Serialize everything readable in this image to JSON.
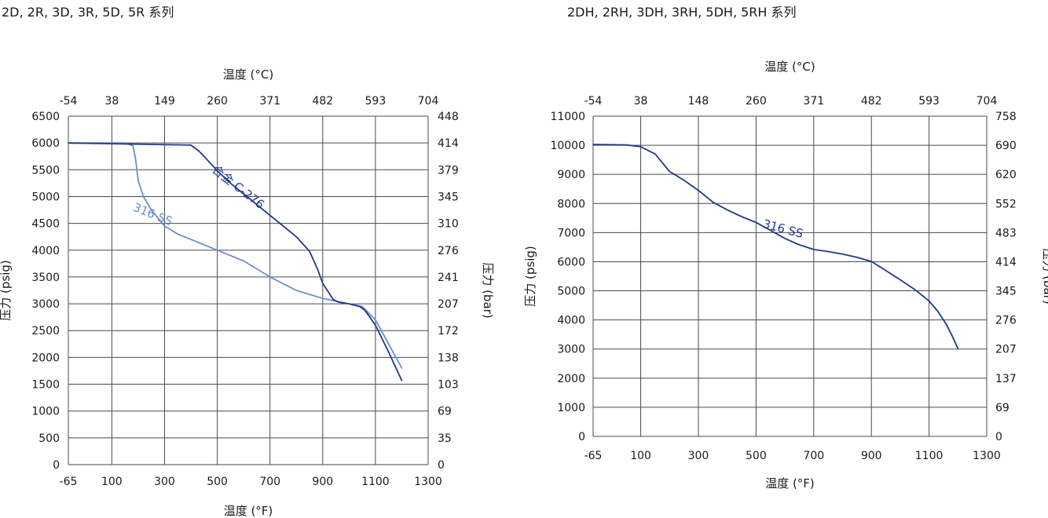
{
  "titles": {
    "left": "2D, 2R, 3D, 3R, 5D, 5R 系列",
    "right": "2DH, 2RH, 3DH, 3RH, 5DH, 5RH 系列"
  },
  "chart_data": [
    {
      "type": "line",
      "id": "left",
      "title": "2D, 2R, 3D, 3R, 5D, 5R 系列",
      "xlabel_bottom": "温度 (°F)",
      "xlabel_top": "温度 (°C)",
      "ylabel_left": "压力 (psig)",
      "ylabel_right": "压力 (bar)",
      "xlim": [
        -65,
        1300
      ],
      "ylim": [
        0,
        6500
      ],
      "x_ticks": [
        -65,
        100,
        300,
        500,
        700,
        900,
        1100,
        1300
      ],
      "x_tick_labels": [
        "-65",
        "100",
        "300",
        "500",
        "700",
        "900",
        "1100",
        "1300"
      ],
      "x_top_ticks": [
        -65,
        100,
        300,
        500,
        700,
        900,
        1100,
        1300
      ],
      "x_top_tick_labels": [
        "-54",
        "38",
        "149",
        "260",
        "371",
        "482",
        "593",
        "704"
      ],
      "y_ticks": [
        0,
        500,
        1000,
        1500,
        2000,
        2500,
        3000,
        3500,
        4000,
        4500,
        5000,
        5500,
        6000,
        6500
      ],
      "y_tick_labels": [
        "0",
        "500",
        "1000",
        "1500",
        "2000",
        "2500",
        "3000",
        "3500",
        "4000",
        "4500",
        "5000",
        "5500",
        "6000",
        "6500"
      ],
      "y_right_tick_labels": [
        "0",
        "35",
        "69",
        "103",
        "138",
        "172",
        "207",
        "241",
        "276",
        "310",
        "345",
        "379",
        "414",
        "448"
      ],
      "grid": true,
      "series": [
        {
          "name": "316 SS",
          "label": "316 SS",
          "color": "#6a8fcf",
          "label_at": [
            250,
            4600
          ],
          "label_angle": 22,
          "x": [
            -65,
            150,
            180,
            190,
            200,
            220,
            250,
            300,
            350,
            400,
            500,
            600,
            700,
            800,
            900,
            1000,
            1050,
            1100,
            1150,
            1200
          ],
          "y": [
            6000,
            6000,
            5950,
            5700,
            5300,
            5000,
            4750,
            4450,
            4300,
            4200,
            4000,
            3800,
            3500,
            3250,
            3100,
            3000,
            2950,
            2700,
            2250,
            1800
          ]
        },
        {
          "name": "合金 C-276",
          "label": "合金 C-276",
          "color": "#1f3a8a",
          "label_at": [
            570,
            5120
          ],
          "label_angle": 38,
          "x": [
            -65,
            400,
            430,
            450,
            500,
            550,
            600,
            650,
            700,
            750,
            800,
            850,
            880,
            900,
            940,
            960,
            1000,
            1040,
            1060,
            1100,
            1150,
            1200
          ],
          "y": [
            6000,
            5960,
            5850,
            5750,
            5480,
            5250,
            5050,
            4850,
            4650,
            4450,
            4250,
            3980,
            3650,
            3380,
            3080,
            3030,
            3000,
            2950,
            2880,
            2600,
            2100,
            1570
          ]
        }
      ]
    },
    {
      "type": "line",
      "id": "right",
      "title": "2DH, 2RH, 3DH, 3RH, 5DH, 5RH 系列",
      "xlabel_bottom": "温度 (°F)",
      "xlabel_top": "温度 (°C)",
      "ylabel_left": "压力 (psig)",
      "ylabel_right": "压力 (bar)",
      "xlim": [
        -65,
        1300
      ],
      "ylim": [
        0,
        11000
      ],
      "x_ticks": [
        -65,
        100,
        300,
        500,
        700,
        900,
        1100,
        1300
      ],
      "x_tick_labels": [
        "-65",
        "100",
        "300",
        "500",
        "700",
        "900",
        "1100",
        "1300"
      ],
      "x_top_ticks": [
        -65,
        100,
        300,
        500,
        700,
        900,
        1100,
        1300
      ],
      "x_top_tick_labels": [
        "-54",
        "38",
        "148",
        "260",
        "371",
        "482",
        "593",
        "704"
      ],
      "y_ticks": [
        0,
        1000,
        2000,
        3000,
        4000,
        5000,
        6000,
        7000,
        8000,
        9000,
        10000,
        11000
      ],
      "y_tick_labels": [
        "0",
        "1000",
        "2000",
        "3000",
        "4000",
        "5000",
        "6000",
        "7000",
        "8000",
        "9000",
        "10000",
        "11000"
      ],
      "y_right_tick_labels": [
        "0",
        "69",
        "137",
        "207",
        "276",
        "345",
        "414",
        "483",
        "552",
        "620",
        "690",
        "758"
      ],
      "grid": true,
      "series": [
        {
          "name": "316 SS",
          "label": "316 SS",
          "color": "#1f3a8a",
          "label_at": [
            590,
            7000
          ],
          "label_angle": 15,
          "x": [
            -65,
            50,
            100,
            150,
            200,
            250,
            300,
            350,
            400,
            450,
            500,
            550,
            600,
            650,
            700,
            750,
            800,
            850,
            900,
            950,
            1000,
            1050,
            1100,
            1130,
            1160,
            1180,
            1200
          ],
          "y": [
            10030,
            10010,
            9950,
            9700,
            9100,
            8800,
            8450,
            8050,
            7780,
            7550,
            7350,
            7080,
            6800,
            6580,
            6420,
            6350,
            6260,
            6150,
            6010,
            5700,
            5380,
            5050,
            4650,
            4300,
            3850,
            3450,
            3020
          ]
        }
      ]
    }
  ]
}
